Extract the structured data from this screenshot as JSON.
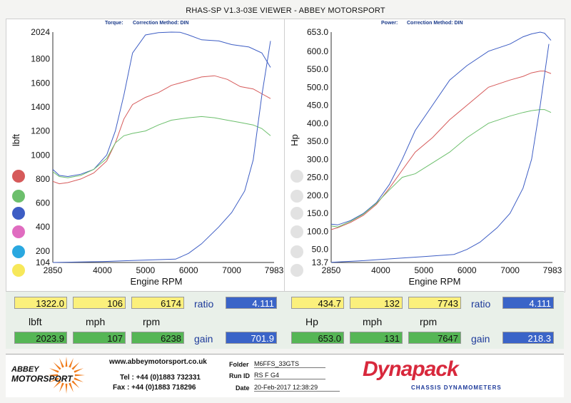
{
  "header": {
    "title": "RHAS-SP V1.3-03E VIEWER - ABBEY MOTORSPORT"
  },
  "colors": {
    "blue": "#3d5dc4",
    "red": "#d65a5a",
    "green": "#6cbf6c",
    "pink": "#e06cc0",
    "cyan": "#2aa8e0",
    "yellow": "#f7e85a"
  },
  "chart_data": [
    {
      "type": "line",
      "subtitle_left": "Torque:",
      "subtitle_right": "Correction Method: DIN",
      "ylabel": "lbft",
      "xlabel": "Engine RPM",
      "xlim": [
        2850,
        7983
      ],
      "ylim": [
        104,
        2024
      ],
      "xticks": [
        "2850",
        "4000",
        "5000",
        "6000",
        "7000",
        "7983"
      ],
      "yticks": [
        "2024",
        "1800",
        "1600",
        "1400",
        "1200",
        "1000",
        "800",
        "600",
        "400",
        "200",
        "104"
      ],
      "legend_dots": [
        "red",
        "green",
        "blue",
        "pink",
        "cyan",
        "yellow"
      ],
      "series": [
        {
          "color": "blue",
          "x": [
            2850,
            3000,
            3200,
            3500,
            3800,
            4100,
            4300,
            4500,
            4700,
            5000,
            5300,
            5600,
            5800,
            6000,
            6300,
            6700,
            7000,
            7400,
            7700,
            7900
          ],
          "y": [
            880,
            830,
            820,
            840,
            880,
            1000,
            1200,
            1500,
            1850,
            2000,
            2020,
            2024,
            2023,
            2000,
            1960,
            1950,
            1920,
            1900,
            1850,
            1730
          ]
        },
        {
          "color": "red",
          "x": [
            2850,
            3000,
            3200,
            3500,
            3800,
            4100,
            4300,
            4500,
            4700,
            5000,
            5300,
            5600,
            6000,
            6300,
            6600,
            6900,
            7200,
            7500,
            7700,
            7900
          ],
          "y": [
            780,
            760,
            770,
            800,
            850,
            950,
            1100,
            1300,
            1420,
            1480,
            1520,
            1580,
            1620,
            1650,
            1660,
            1630,
            1570,
            1550,
            1510,
            1470
          ]
        },
        {
          "color": "green",
          "x": [
            2850,
            3000,
            3200,
            3500,
            3800,
            4100,
            4300,
            4500,
            4700,
            5000,
            5300,
            5600,
            6000,
            6300,
            6600,
            6900,
            7200,
            7500,
            7700,
            7900
          ],
          "y": [
            860,
            820,
            810,
            830,
            880,
            970,
            1100,
            1160,
            1180,
            1200,
            1250,
            1290,
            1310,
            1320,
            1310,
            1290,
            1270,
            1250,
            1220,
            1160
          ]
        },
        {
          "color": "blue",
          "x": [
            2850,
            3500,
            4000,
            4500,
            5000,
            5700,
            6000,
            6300,
            6700,
            7000,
            7300,
            7500,
            7700,
            7900
          ],
          "y": [
            104,
            108,
            112,
            118,
            124,
            132,
            180,
            260,
            400,
            520,
            700,
            960,
            1500,
            1950
          ]
        }
      ]
    },
    {
      "type": "line",
      "subtitle_left": "Power:",
      "subtitle_right": "Correction Method: DIN",
      "ylabel": "Hp",
      "xlabel": "Engine RPM",
      "xlim": [
        2850,
        7983
      ],
      "ylim": [
        13.7,
        653.0
      ],
      "xticks": [
        "2850",
        "4000",
        "5000",
        "6000",
        "7000",
        "7983"
      ],
      "yticks": [
        "653.0",
        "600.0",
        "550.0",
        "500.0",
        "450.0",
        "400.0",
        "350.0",
        "300.0",
        "250.0",
        "200.0",
        "150.0",
        "100.0",
        "50.0",
        "13.7"
      ],
      "series": [
        {
          "color": "blue",
          "x": [
            2850,
            3000,
            3300,
            3600,
            3900,
            4200,
            4500,
            4800,
            5200,
            5600,
            6000,
            6500,
            7000,
            7300,
            7500,
            7700,
            7800,
            7950
          ],
          "y": [
            120,
            118,
            130,
            150,
            180,
            230,
            300,
            380,
            450,
            520,
            560,
            600,
            620,
            640,
            648,
            653,
            650,
            630
          ]
        },
        {
          "color": "red",
          "x": [
            2850,
            3000,
            3300,
            3600,
            3900,
            4200,
            4500,
            4800,
            5200,
            5600,
            6000,
            6500,
            7000,
            7300,
            7500,
            7700,
            7800,
            7950
          ],
          "y": [
            105,
            110,
            125,
            145,
            175,
            220,
            270,
            320,
            360,
            410,
            450,
            500,
            520,
            530,
            540,
            545,
            545,
            538
          ]
        },
        {
          "color": "green",
          "x": [
            2850,
            3000,
            3300,
            3600,
            3900,
            4200,
            4500,
            4800,
            5200,
            5600,
            6000,
            6500,
            7000,
            7300,
            7500,
            7700,
            7800,
            7950
          ],
          "y": [
            115,
            112,
            128,
            148,
            178,
            215,
            250,
            260,
            290,
            320,
            360,
            400,
            420,
            430,
            435,
            438,
            438,
            430
          ]
        },
        {
          "color": "blue",
          "x": [
            2850,
            3500,
            4000,
            4500,
            5000,
            5700,
            6000,
            6300,
            6700,
            7000,
            7300,
            7500,
            7700,
            7900
          ],
          "y": [
            14,
            18,
            22,
            26,
            30,
            36,
            50,
            70,
            110,
            150,
            220,
            300,
            450,
            620
          ]
        }
      ]
    }
  ],
  "readouts": {
    "left": {
      "row1": [
        "1322.0",
        "106",
        "6174"
      ],
      "labels": [
        "lbft",
        "mph",
        "rpm"
      ],
      "row2": [
        "2023.9",
        "107",
        "6238"
      ],
      "ratio_label": "ratio",
      "ratio": "4.111",
      "gain_label": "gain",
      "gain": "701.9"
    },
    "right": {
      "row1": [
        "434.7",
        "132",
        "7743"
      ],
      "labels": [
        "Hp",
        "mph",
        "rpm"
      ],
      "row2": [
        "653.0",
        "131",
        "7647"
      ],
      "ratio_label": "ratio",
      "ratio": "4.111",
      "gain_label": "gain",
      "gain": "218.3"
    }
  },
  "footer": {
    "brand_line1": "ABBEY",
    "brand_line2": "MOTORSPORT",
    "website": "www.abbeymotorsport.co.uk",
    "tel": "Tel : +44 (0)1883 732331",
    "fax": "Fax : +44 (0)1883 718296",
    "folder_label": "Folder",
    "folder": "M6FFS_33GTS",
    "run_label": "Run ID",
    "run": "RS F G4",
    "date_label": "Date",
    "date": "20-Feb-2017  12:38:29",
    "dyno_name": "Dynapack",
    "dyno_tag": "CHASSIS  DYNAMOMETERS"
  }
}
